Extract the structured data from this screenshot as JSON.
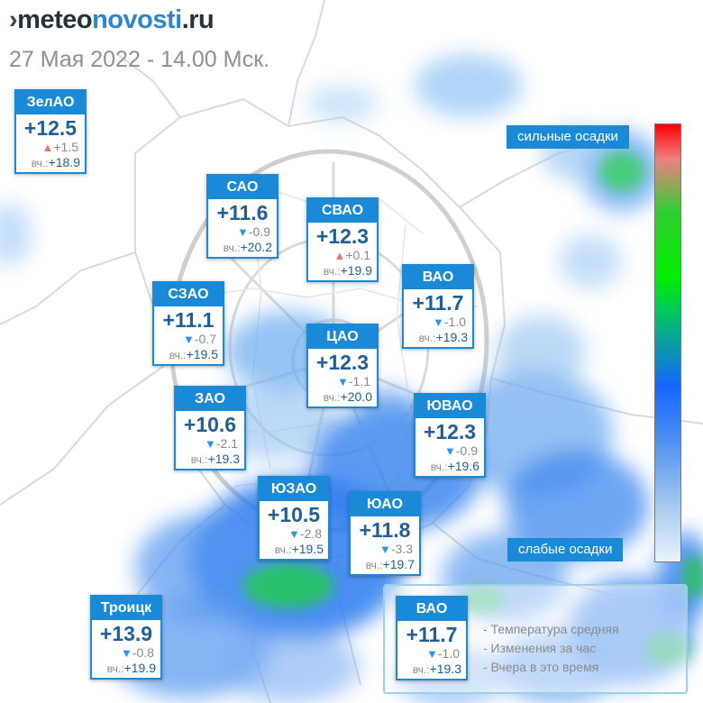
{
  "header": {
    "logo": {
      "part1": "meteo",
      "part2": "novosti",
      "part3": ".ru"
    },
    "subtitle": "27 Мая 2022 - 14.00 Мск."
  },
  "scale": {
    "top_label": "сильные осадки",
    "bottom_label": "слабые осадки",
    "colors": [
      "#ff0000",
      "#00ee00",
      "#1565ff",
      "#eaf3fb"
    ]
  },
  "colors": {
    "accent": "#1a8ad8",
    "temp_text": "#1f5e96",
    "down_arrow": "#2a95e8",
    "up_arrow": "#e57373"
  },
  "yesterday_label": "вч.:",
  "districts": [
    {
      "name": "ЗелАО",
      "temp": "+12.5",
      "change": "+1.5",
      "dir": "up",
      "yesterday": "+18.9"
    },
    {
      "name": "САО",
      "temp": "+11.6",
      "change": "-0.9",
      "dir": "down",
      "yesterday": "+20.2"
    },
    {
      "name": "СВАО",
      "temp": "+12.3",
      "change": "+0.1",
      "dir": "up",
      "yesterday": "+19.9"
    },
    {
      "name": "ВАО",
      "temp": "+11.7",
      "change": "-1.0",
      "dir": "down",
      "yesterday": "+19.3"
    },
    {
      "name": "СЗАО",
      "temp": "+11.1",
      "change": "-0.7",
      "dir": "down",
      "yesterday": "+19.5"
    },
    {
      "name": "ЦАО",
      "temp": "+12.3",
      "change": "-1.1",
      "dir": "down",
      "yesterday": "+20.0"
    },
    {
      "name": "ЗАО",
      "temp": "+10.6",
      "change": "-2.1",
      "dir": "down",
      "yesterday": "+19.3"
    },
    {
      "name": "ЮВАО",
      "temp": "+12.3",
      "change": "-0.9",
      "dir": "down",
      "yesterday": "+19.6"
    },
    {
      "name": "ЮЗАО",
      "temp": "+10.5",
      "change": "-2.8",
      "dir": "down",
      "yesterday": "+19.5"
    },
    {
      "name": "ЮАО",
      "temp": "+11.8",
      "change": "-3.3",
      "dir": "down",
      "yesterday": "+19.7"
    },
    {
      "name": "Троицк",
      "temp": "+13.9",
      "change": "-0.8",
      "dir": "down",
      "yesterday": "+19.9"
    }
  ],
  "legend": {
    "example": {
      "name": "ВАО",
      "temp": "+11.7",
      "change": "-1.0",
      "dir": "down",
      "yesterday": "+19.3"
    },
    "lines": [
      "- Температура средняя",
      "- Изменения за час",
      "- Вчера в это время"
    ]
  }
}
